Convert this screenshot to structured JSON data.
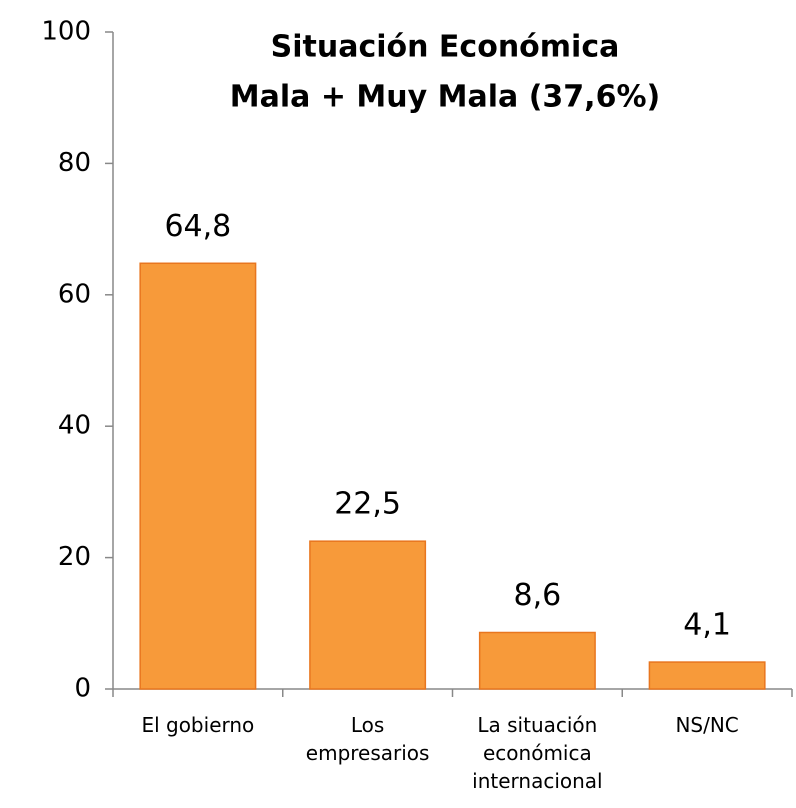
{
  "chart_data": {
    "type": "bar",
    "title": [
      "Situación Económica",
      "Mala + Muy Mala (37,6%)"
    ],
    "categories": [
      "El gobierno",
      "Los empresarios",
      "La situación económica internacional",
      "NS/NC"
    ],
    "values": [
      64.8,
      22.5,
      8.6,
      4.1
    ],
    "value_labels": [
      "64,8",
      "22,5",
      "8,6",
      "4,1"
    ],
    "color": "#f79a3a",
    "edge_color": "#e8761f",
    "ylim": [
      0,
      100
    ],
    "yticks": [
      0,
      20,
      40,
      60,
      80,
      100
    ],
    "grid": false
  }
}
